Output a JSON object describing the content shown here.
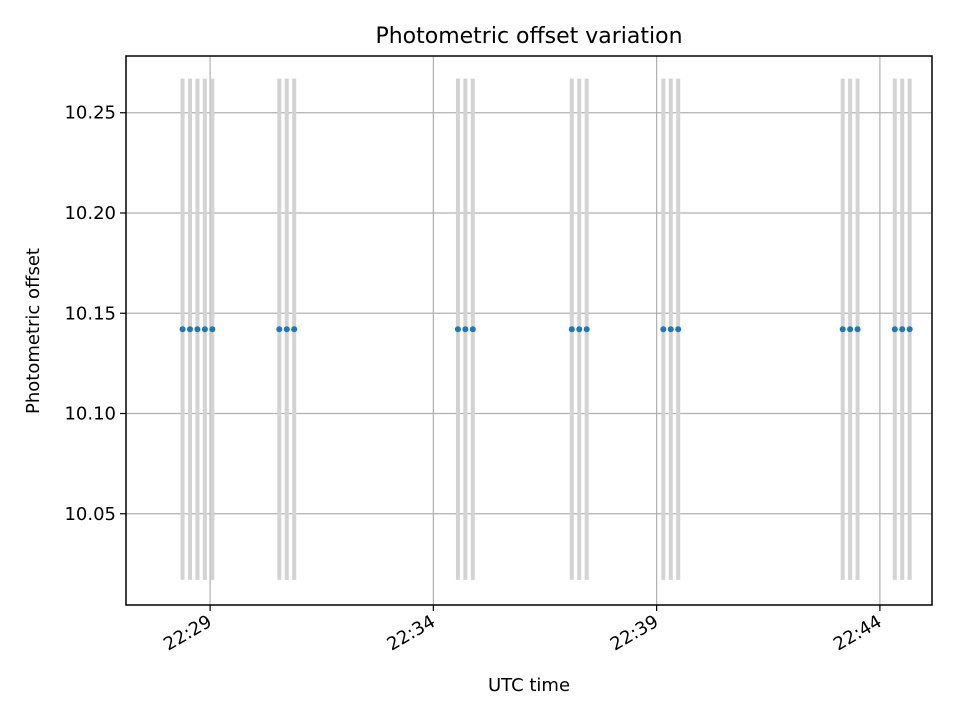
{
  "chart_data": {
    "type": "scatter",
    "title": "Photometric offset variation",
    "xlabel": "UTC time",
    "ylabel": "Photometric offset",
    "x_unit": "UTC time (HH:MM:SS)",
    "xlim": [
      "22:27:07",
      "22:45:10"
    ],
    "ylim": [
      10.0045,
      10.2783
    ],
    "yticks": [
      "10.05",
      "10.10",
      "10.15",
      "10.20",
      "10.25"
    ],
    "xticks": [
      "22:29",
      "22:34",
      "22:39",
      "22:44"
    ],
    "grid": true,
    "series": [
      {
        "marker_color": "#1f77b4",
        "x": [
          "22:28:23",
          "22:28:33",
          "22:28:43",
          "22:28:53",
          "22:29:03",
          "22:30:33",
          "22:30:43",
          "22:30:53",
          "22:34:33",
          "22:34:43",
          "22:34:53",
          "22:37:06",
          "22:37:16",
          "22:37:26",
          "22:39:09",
          "22:39:19",
          "22:39:29",
          "22:43:10",
          "22:43:20",
          "22:43:30",
          "22:44:20",
          "22:44:30",
          "22:44:40"
        ],
        "y": [
          10.142,
          10.142,
          10.142,
          10.142,
          10.142,
          10.142,
          10.142,
          10.142,
          10.142,
          10.142,
          10.142,
          10.142,
          10.142,
          10.142,
          10.142,
          10.142,
          10.142,
          10.142,
          10.142,
          10.142,
          10.142,
          10.142,
          10.142
        ],
        "error_low": [
          10.017,
          10.017,
          10.017,
          10.017,
          10.017,
          10.017,
          10.017,
          10.017,
          10.017,
          10.017,
          10.017,
          10.017,
          10.017,
          10.017,
          10.017,
          10.017,
          10.017,
          10.017,
          10.017,
          10.017,
          10.017,
          10.017,
          10.017
        ],
        "error_high": [
          10.267,
          10.267,
          10.267,
          10.267,
          10.267,
          10.267,
          10.267,
          10.267,
          10.267,
          10.267,
          10.267,
          10.267,
          10.267,
          10.267,
          10.267,
          10.267,
          10.267,
          10.267,
          10.267,
          10.267,
          10.267,
          10.267,
          10.267
        ],
        "error_color": "#d3d3d3"
      }
    ]
  }
}
